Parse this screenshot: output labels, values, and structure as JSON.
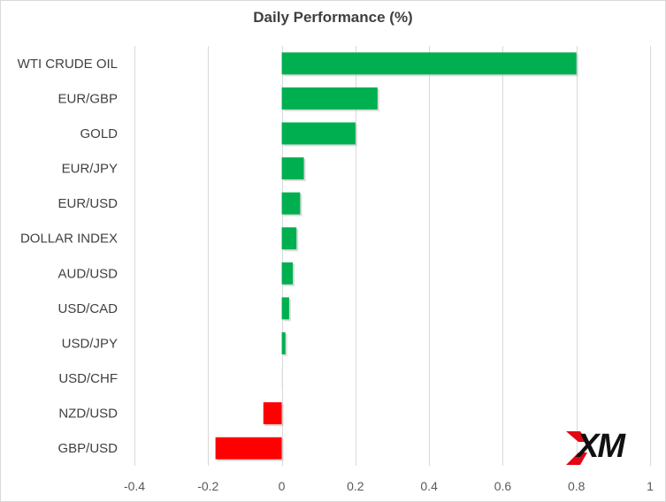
{
  "chart_data": {
    "type": "bar",
    "orientation": "horizontal",
    "title": "Daily Performance (%)",
    "categories": [
      "WTI CRUDE OIL",
      "EUR/GBP",
      "GOLD",
      "EUR/JPY",
      "EUR/USD",
      "DOLLAR INDEX",
      "AUD/USD",
      "USD/CAD",
      "USD/JPY",
      "USD/CHF",
      "NZD/USD",
      "GBP/USD"
    ],
    "values": [
      0.8,
      0.26,
      0.2,
      0.06,
      0.05,
      0.04,
      0.03,
      0.02,
      0.01,
      0.0,
      -0.05,
      -0.18
    ],
    "xlim": [
      -0.4,
      1
    ],
    "xticks": [
      "-0.4",
      "-0.2",
      "0",
      "0.2",
      "0.4",
      "0.6",
      "0.8",
      "1"
    ],
    "xtick_values": [
      -0.4,
      -0.2,
      0,
      0.2,
      0.4,
      0.6,
      0.8,
      1
    ],
    "grid": "vertical",
    "colors": {
      "positive": "#00b050",
      "negative": "#ff0000",
      "gridline": "#d9d9d9"
    }
  },
  "logo": {
    "text": "XM"
  }
}
